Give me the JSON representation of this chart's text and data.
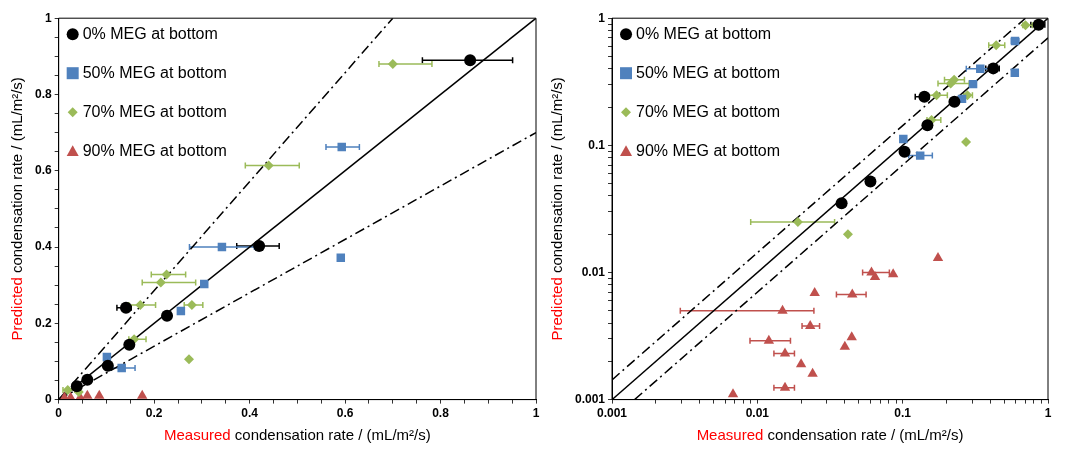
{
  "chart_data": [
    {
      "type": "scatter",
      "xlabel": "Measured condensation rate / (mL/m²/s)",
      "ylabel": "Predicted condensation rate / (mL/m²/s)",
      "xlim": [
        0,
        1
      ],
      "ylim": [
        0,
        1
      ],
      "xticks": [
        0,
        {
          "value": 0.05,
          "label": null
        },
        {
          "value": 0.1,
          "label": null
        },
        {
          "value": 0.15,
          "label": null
        },
        0.2,
        {
          "value": 0.25,
          "label": null
        },
        {
          "value": 0.3,
          "label": null
        },
        {
          "value": 0.35,
          "label": null
        },
        0.4,
        {
          "value": 0.45,
          "label": null
        },
        {
          "value": 0.5,
          "label": null
        },
        {
          "value": 0.55,
          "label": null
        },
        0.6,
        {
          "value": 0.65,
          "label": null
        },
        {
          "value": 0.7,
          "label": null
        },
        {
          "value": 0.75,
          "label": null
        },
        0.8,
        {
          "value": 0.85,
          "label": null
        },
        {
          "value": 0.9,
          "label": null
        },
        {
          "value": 0.95,
          "label": null
        },
        1
      ],
      "yticks": [
        0,
        {
          "value": 0.05,
          "label": null
        },
        {
          "value": 0.1,
          "label": null
        },
        {
          "value": 0.15,
          "label": null
        },
        0.2,
        {
          "value": 0.25,
          "label": null
        },
        {
          "value": 0.3,
          "label": null
        },
        {
          "value": 0.35,
          "label": null
        },
        0.4,
        {
          "value": 0.45,
          "label": null
        },
        {
          "value": 0.5,
          "label": null
        },
        {
          "value": 0.55,
          "label": null
        },
        0.6,
        {
          "value": 0.65,
          "label": null
        },
        {
          "value": 0.7,
          "label": null
        },
        {
          "value": 0.75,
          "label": null
        },
        0.8,
        {
          "value": 0.85,
          "label": null
        },
        {
          "value": 0.9,
          "label": null
        },
        {
          "value": 0.95,
          "label": null
        },
        1
      ],
      "legend": "top left",
      "series": [
        {
          "name": "0% MEG at bottom",
          "color": "#000000",
          "marker": "circle",
          "x": [
            0.038,
            0.06,
            0.103,
            0.148,
            0.141,
            0.227,
            0.42,
            0.862
          ],
          "values": [
            0.035,
            0.052,
            0.089,
            0.144,
            0.241,
            0.22,
            0.403,
            0.89
          ],
          "xerrors": [
            null,
            null,
            null,
            null,
            [
              0.122,
              0.152
            ],
            null,
            [
              0.373,
              0.462
            ],
            [
              0.762,
              0.951
            ]
          ]
        },
        {
          "name": "50% MEG at bottom",
          "color": "#4f81bd",
          "marker": "square",
          "x": [
            0.101,
            0.132,
            0.256,
            0.305,
            0.342,
            0.591,
            0.593
          ],
          "values": [
            0.112,
            0.083,
            0.232,
            0.303,
            0.4,
            0.372,
            0.662
          ],
          "xerrors": [
            null,
            [
              0.11,
              0.16
            ],
            null,
            null,
            [
              0.274,
              0.41
            ],
            null,
            [
              0.56,
              0.63
            ]
          ]
        },
        {
          "name": "70% MEG at bottom",
          "color": "#9bbb59",
          "marker": "diamond",
          "x": [
            0.019,
            0.042,
            0.158,
            0.171,
            0.214,
            0.226,
            0.273,
            0.279,
            0.44,
            0.7
          ],
          "values": [
            0.025,
            0.02,
            0.158,
            0.248,
            0.307,
            0.328,
            0.106,
            0.248,
            0.614,
            0.88
          ],
          "xerrors": [
            [
              0.009,
              0.034
            ],
            null,
            [
              0.147,
              0.183
            ],
            [
              0.147,
              0.203
            ],
            [
              0.175,
              0.287
            ],
            [
              0.194,
              0.266
            ],
            null,
            [
              0.263,
              0.302
            ],
            [
              0.391,
              0.504
            ],
            [
              0.671,
              0.782
            ]
          ]
        },
        {
          "name": "90% MEG at bottom",
          "color": "#c0504d",
          "marker": "triangle",
          "x": [
            0.175,
            0.085,
            0.06,
            0.045,
            0.025,
            0.012
          ],
          "values": [
            0.01,
            0.01,
            0.01,
            0.005,
            0.005,
            0.005
          ]
        },
        {
          "type": "line",
          "color": "#000000",
          "marker": "none",
          "line_style": "solid",
          "x": [
            0,
            1
          ],
          "values": [
            0,
            1
          ]
        },
        {
          "type": "line",
          "color": "#000000",
          "marker": "none",
          "line_style": "dashed",
          "x": [
            0,
            0.7
          ],
          "values": [
            0,
            1
          ]
        },
        {
          "type": "line",
          "color": "#000000",
          "marker": "none",
          "line_style": "dashed",
          "x": [
            0,
            1
          ],
          "values": [
            0,
            0.7
          ]
        }
      ]
    },
    {
      "type": "scatter",
      "log": "xy",
      "xlabel": "Measured condensation rate / (mL/m²/s)",
      "ylabel": "Predicted condensation rate / (mL/m²/s)",
      "xlim": [
        0.001,
        1
      ],
      "ylim": [
        0.001,
        1
      ],
      "xticks": [
        0.001,
        {
          "value": 0.002,
          "label": null
        },
        {
          "value": 0.003,
          "label": null
        },
        {
          "value": 0.004,
          "label": null
        },
        {
          "value": 0.005,
          "label": null
        },
        {
          "value": 0.006,
          "label": null
        },
        {
          "value": 0.007,
          "label": null
        },
        {
          "value": 0.008,
          "label": null
        },
        {
          "value": 0.009,
          "label": null
        },
        0.01,
        {
          "value": 0.02,
          "label": null
        },
        {
          "value": 0.03,
          "label": null
        },
        {
          "value": 0.04,
          "label": null
        },
        {
          "value": 0.05,
          "label": null
        },
        {
          "value": 0.06,
          "label": null
        },
        {
          "value": 0.07,
          "label": null
        },
        {
          "value": 0.08,
          "label": null
        },
        {
          "value": 0.09,
          "label": null
        },
        0.1,
        {
          "value": 0.2,
          "label": null
        },
        {
          "value": 0.3,
          "label": null
        },
        {
          "value": 0.4,
          "label": null
        },
        {
          "value": 0.5,
          "label": null
        },
        {
          "value": 0.6,
          "label": null
        },
        {
          "value": 0.7,
          "label": null
        },
        {
          "value": 0.8,
          "label": null
        },
        {
          "value": 0.9,
          "label": null
        },
        1
      ],
      "yticks": [
        0.001,
        {
          "value": 0.002,
          "label": null
        },
        {
          "value": 0.003,
          "label": null
        },
        {
          "value": 0.004,
          "label": null
        },
        {
          "value": 0.005,
          "label": null
        },
        {
          "value": 0.006,
          "label": null
        },
        {
          "value": 0.007,
          "label": null
        },
        {
          "value": 0.008,
          "label": null
        },
        {
          "value": 0.009,
          "label": null
        },
        0.01,
        {
          "value": 0.02,
          "label": null
        },
        {
          "value": 0.03,
          "label": null
        },
        {
          "value": 0.04,
          "label": null
        },
        {
          "value": 0.05,
          "label": null
        },
        {
          "value": 0.06,
          "label": null
        },
        {
          "value": 0.07,
          "label": null
        },
        {
          "value": 0.08,
          "label": null
        },
        {
          "value": 0.09,
          "label": null
        },
        0.1,
        {
          "value": 0.2,
          "label": null
        },
        {
          "value": 0.3,
          "label": null
        },
        {
          "value": 0.4,
          "label": null
        },
        {
          "value": 0.5,
          "label": null
        },
        {
          "value": 0.6,
          "label": null
        },
        {
          "value": 0.7,
          "label": null
        },
        {
          "value": 0.8,
          "label": null
        },
        {
          "value": 0.9,
          "label": null
        },
        1
      ],
      "legend": "top left",
      "series": [
        {
          "name": "0% MEG at bottom",
          "color": "#000000",
          "marker": "circle",
          "x": [
            0.038,
            0.06,
            0.103,
            0.148,
            0.141,
            0.227,
            0.42,
            0.862
          ],
          "values": [
            0.035,
            0.052,
            0.089,
            0.144,
            0.241,
            0.22,
            0.403,
            0.89
          ],
          "xerrors": [
            null,
            null,
            null,
            null,
            [
              0.122,
              0.152
            ],
            null,
            [
              0.373,
              0.462
            ],
            [
              0.762,
              0.951
            ]
          ]
        },
        {
          "name": "50% MEG at bottom",
          "color": "#4f81bd",
          "marker": "square",
          "x": [
            0.101,
            0.132,
            0.256,
            0.305,
            0.342,
            0.591,
            0.593
          ],
          "values": [
            0.112,
            0.083,
            0.232,
            0.303,
            0.4,
            0.372,
            0.662
          ],
          "xerrors": [
            null,
            [
              0.11,
              0.16
            ],
            null,
            null,
            [
              0.274,
              0.41
            ],
            null,
            [
              0.56,
              0.63
            ]
          ]
        },
        {
          "name": "70% MEG at bottom",
          "color": "#9bbb59",
          "marker": "diamond",
          "x": [
            0.019,
            0.042,
            0.158,
            0.171,
            0.214,
            0.226,
            0.273,
            0.279,
            0.44,
            0.7
          ],
          "values": [
            0.025,
            0.02,
            0.158,
            0.248,
            0.307,
            0.328,
            0.106,
            0.248,
            0.614,
            0.88
          ],
          "xerrors": [
            [
              0.009,
              0.034
            ],
            null,
            [
              0.147,
              0.183
            ],
            [
              0.147,
              0.203
            ],
            [
              0.175,
              0.287
            ],
            [
              0.194,
              0.266
            ],
            null,
            [
              0.263,
              0.302
            ],
            [
              0.391,
              0.504
            ],
            [
              0.671,
              0.782
            ]
          ]
        },
        {
          "name": "90% MEG at bottom",
          "color": "#c0504d",
          "marker": "triangle",
          "x": [
            0.175,
            0.061,
            0.0645,
            0.086,
            0.0248,
            0.045,
            0.0149,
            0.0231,
            0.012,
            0.0155,
            0.02,
            0.024,
            0.0155,
            0.0068,
            0.04,
            0.0446
          ],
          "values": [
            0.013,
            0.01,
            0.0092,
            0.0097,
            0.0069,
            0.0067,
            0.005,
            0.0038,
            0.0029,
            0.0023,
            0.0019,
            0.0016,
            0.00124,
            0.0011,
            0.0026,
            0.0031
          ],
          "xerrors": [
            null,
            [
              0.053,
              0.081
            ],
            null,
            null,
            null,
            [
              0.035,
              0.056
            ],
            [
              0.00295,
              0.0245
            ],
            [
              0.0203,
              0.0268
            ],
            [
              0.0089,
              0.0169
            ],
            [
              0.013,
              0.018
            ],
            null,
            null,
            [
              0.013,
              0.018
            ],
            null,
            null,
            null
          ]
        },
        {
          "type": "line",
          "color": "#000000",
          "marker": "none",
          "line_style": "solid",
          "x": [
            0.001,
            1
          ],
          "values": [
            0.001,
            1
          ]
        },
        {
          "type": "line",
          "color": "#000000",
          "marker": "none",
          "line_style": "dashed",
          "x": [
            0.001,
            0.7
          ],
          "values": [
            0.00143,
            1
          ]
        },
        {
          "type": "line",
          "color": "#000000",
          "marker": "none",
          "line_style": "dashed",
          "x": [
            0.00143,
            1
          ],
          "values": [
            0.001,
            0.7
          ]
        }
      ]
    }
  ]
}
